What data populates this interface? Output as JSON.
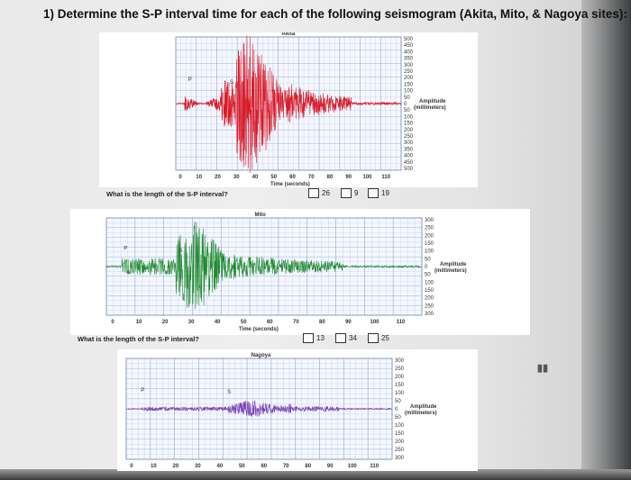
{
  "question": "1) Determine the S-P interval time for each of the following seismogram (Akita, Mito, & Nagoya sites):",
  "axis_x_label": "Time (seconds)",
  "axis_y_label": "Amplitude (millimeters)",
  "p_marker": "P",
  "s_marker": "S",
  "x_ticks": [
    "0",
    "10",
    "20",
    "30",
    "40",
    "50",
    "60",
    "70",
    "80",
    "90",
    "100",
    "110"
  ],
  "y_ticks_akita": [
    "500",
    "450",
    "400",
    "350",
    "300",
    "250",
    "200",
    "150",
    "100",
    "50",
    "0",
    "50",
    "100",
    "150",
    "200",
    "250",
    "300",
    "350",
    "400",
    "450",
    "500"
  ],
  "y_ticks_small": [
    "300",
    "250",
    "200",
    "150",
    "100",
    "50",
    "0",
    "50",
    "100",
    "150",
    "200",
    "250",
    "300"
  ],
  "colors": {
    "akita": "#d81b2a",
    "mito": "#1f8a2e",
    "nagoya": "#7b3fb3",
    "grid": "#8aa0c8"
  },
  "panels": [
    {
      "site": "Akita",
      "prompt": "What is the length of the S-P interval?",
      "options": [
        "26",
        "9",
        "19"
      ],
      "p_time": 0,
      "s_time": 9,
      "ymax": 500
    },
    {
      "site": "Mito",
      "prompt": "What is the length of the S-P interval?",
      "options": [
        "13",
        "34",
        "25"
      ],
      "p_time": 0,
      "s_time": 25,
      "ymax": 300
    },
    {
      "site": "Nagoya",
      "prompt": "What is the length of the S-P interval?",
      "options": [],
      "p_time": 0,
      "s_time": 34,
      "ymax": 300
    }
  ]
}
